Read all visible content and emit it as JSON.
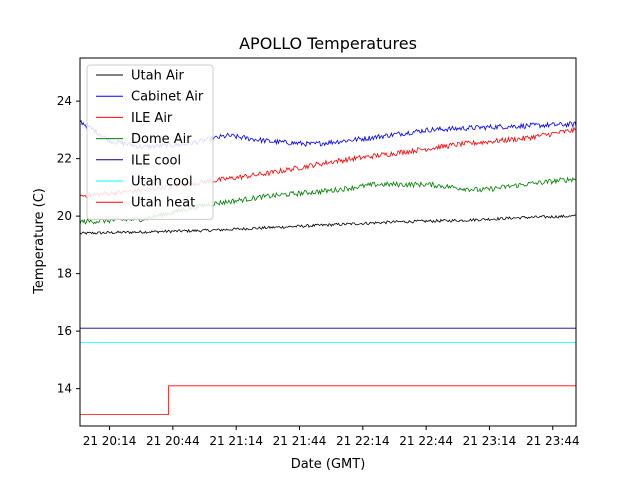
{
  "chart_data": {
    "type": "line",
    "title": "APOLLO Temperatures",
    "xlabel": "Date (GMT)",
    "ylabel": "Temperature (C)",
    "x_unit": "minutes",
    "xlim": [
      "20:00",
      "23:55"
    ],
    "ylim": [
      12.7,
      25.5
    ],
    "x_ticks": [
      {
        "value": "20:14",
        "label": "21 20:14"
      },
      {
        "value": "20:44",
        "label": "21 20:44"
      },
      {
        "value": "21:14",
        "label": "21 21:14"
      },
      {
        "value": "21:44",
        "label": "21 21:44"
      },
      {
        "value": "22:14",
        "label": "21 22:14"
      },
      {
        "value": "22:44",
        "label": "21 22:44"
      },
      {
        "value": "23:14",
        "label": "21 23:14"
      },
      {
        "value": "23:44",
        "label": "21 23:44"
      }
    ],
    "y_ticks": [
      14,
      16,
      18,
      20,
      22,
      24
    ],
    "grid": false,
    "legend_position": "top-left",
    "series": [
      {
        "name": "Utah Air",
        "color": "#000000",
        "x": [
          "20:00",
          "20:30",
          "21:00",
          "21:30",
          "22:00",
          "22:30",
          "23:00",
          "23:30",
          "23:55"
        ],
        "y": [
          19.4,
          19.45,
          19.5,
          19.6,
          19.7,
          19.8,
          19.85,
          19.95,
          20.0
        ]
      },
      {
        "name": "Cabinet Air",
        "color": "#0000ff",
        "x": [
          "20:00",
          "20:15",
          "20:30",
          "20:50",
          "21:10",
          "21:30",
          "21:50",
          "22:15",
          "22:45",
          "23:15",
          "23:55"
        ],
        "y": [
          23.3,
          22.6,
          22.4,
          22.5,
          22.8,
          22.6,
          22.5,
          22.7,
          23.0,
          23.1,
          23.2
        ]
      },
      {
        "name": "ILE Air",
        "color": "#ff0000",
        "x": [
          "20:00",
          "20:30",
          "21:00",
          "21:30",
          "22:00",
          "22:30",
          "23:00",
          "23:30",
          "23:55"
        ],
        "y": [
          20.7,
          20.9,
          21.2,
          21.5,
          21.9,
          22.2,
          22.5,
          22.7,
          23.0
        ]
      },
      {
        "name": "Dome Air",
        "color": "#008000",
        "x": [
          "20:00",
          "20:30",
          "21:00",
          "21:30",
          "22:00",
          "22:20",
          "22:45",
          "23:10",
          "23:30",
          "23:55"
        ],
        "y": [
          19.8,
          19.9,
          20.4,
          20.7,
          20.9,
          21.1,
          21.1,
          20.9,
          21.1,
          21.3
        ]
      },
      {
        "name": "ILE cool",
        "color": "#000080",
        "x": [
          "20:00",
          "23:55"
        ],
        "y": [
          16.1,
          16.1
        ]
      },
      {
        "name": "Utah cool",
        "color": "#00ffff",
        "x": [
          "20:00",
          "23:55"
        ],
        "y": [
          15.6,
          15.6
        ]
      },
      {
        "name": "Utah heat",
        "color": "#ff0000",
        "step": true,
        "x": [
          "20:00",
          "20:42",
          "20:42",
          "23:55"
        ],
        "y": [
          13.1,
          13.1,
          14.1,
          14.1
        ]
      }
    ]
  }
}
